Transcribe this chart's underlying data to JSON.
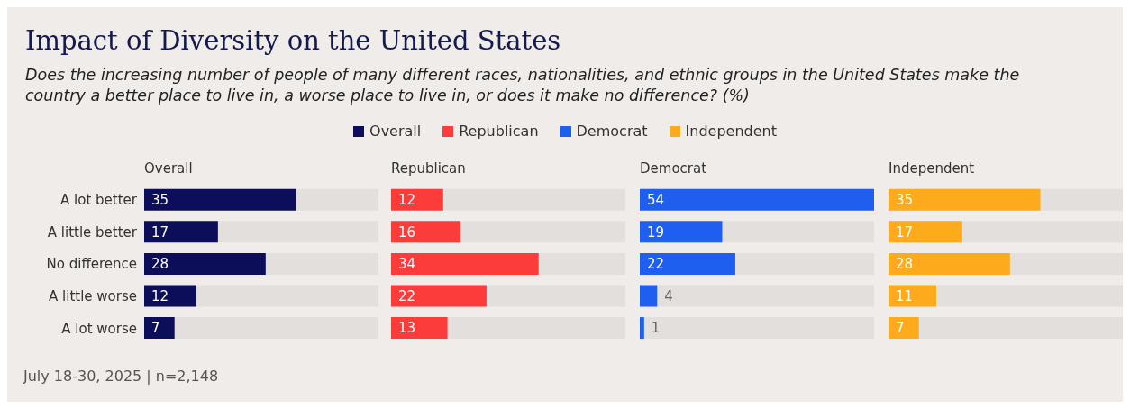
{
  "chart_data": [
    {
      "type": "bar",
      "orientation": "horizontal",
      "title": "Impact of Diversity on the United States",
      "subtitle": "Does the increasing number of people of many different races, nationalities, and ethnic groups in the United States make the country a better place to live in, a worse place to live in, or does it make no difference? (%)",
      "annotations": [
        "July 18-30, 2025 | n=2,148"
      ],
      "legend": "top",
      "tick_labels": "y",
      "data_labels": true,
      "xlim": [
        0,
        54
      ],
      "categories": [
        "A lot better",
        "A little better",
        "No difference",
        "A little worse",
        "A lot worse"
      ],
      "series": [
        {
          "name": "Overall",
          "color": "#0c0e5a",
          "values": [
            35,
            17,
            28,
            12,
            7
          ]
        }
      ]
    },
    {
      "type": "bar",
      "orientation": "horizontal",
      "legend": "top",
      "tick_labels": false,
      "data_labels": true,
      "xlim": [
        0,
        54
      ],
      "categories": [
        null,
        null,
        null,
        null,
        null
      ],
      "series": [
        {
          "name": "Republican",
          "color": "#fc3b3b",
          "values": [
            12,
            16,
            34,
            22,
            13
          ]
        }
      ]
    },
    {
      "type": "bar",
      "orientation": "horizontal",
      "legend": "top",
      "tick_labels": false,
      "data_labels": true,
      "xlim": [
        0,
        54
      ],
      "categories": [
        null,
        null,
        null,
        null,
        null
      ],
      "series": [
        {
          "name": "Democrat",
          "color": "#1f5ff0",
          "values": [
            54,
            19,
            22,
            4,
            1
          ]
        }
      ]
    },
    {
      "type": "bar",
      "orientation": "horizontal",
      "legend": "top",
      "tick_labels": false,
      "data_labels": true,
      "xlim": [
        0,
        54
      ],
      "categories": [
        null,
        null,
        null,
        null,
        null
      ],
      "series": [
        {
          "name": "Independent",
          "color": "#fdab1c",
          "values": [
            35,
            17,
            28,
            11,
            7
          ]
        }
      ]
    }
  ]
}
